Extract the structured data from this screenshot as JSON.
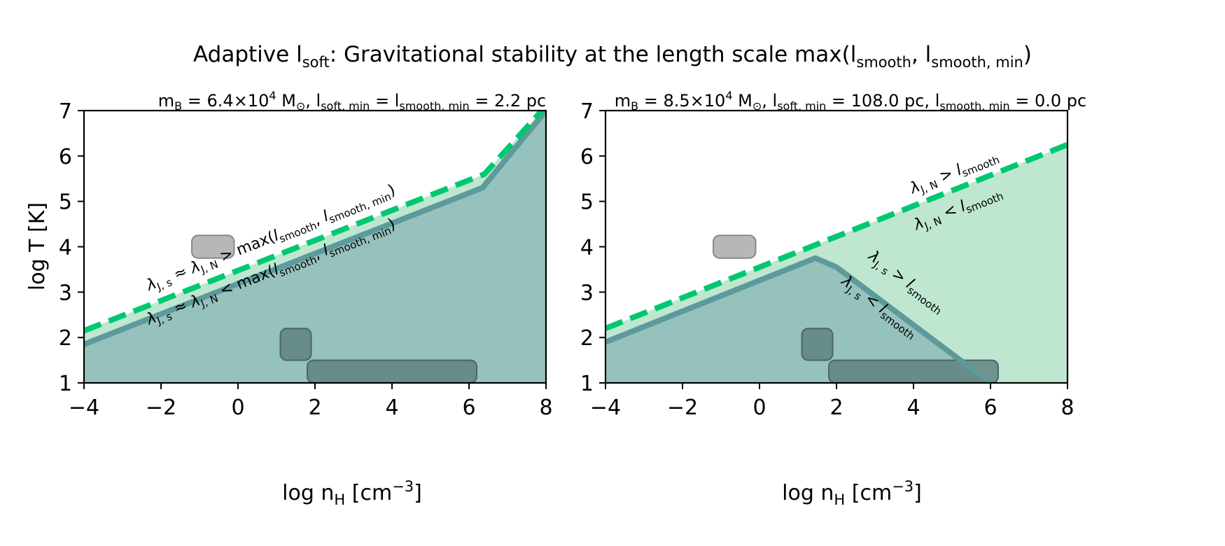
{
  "colors": {
    "green_region": "#bfe6d0",
    "teal_region": "#96c2be",
    "teal_line": "#5e9a9c",
    "dashed_green": "#00c870",
    "light_box": "#aaaaaa",
    "dark_box": "#5d7e7b"
  },
  "chart_data": [
    {
      "type": "area",
      "title": "Adaptive l_soft: Gravitational stability at the length scale max(l_smooth, l_smooth,min)",
      "title_parts": {
        "t1": "Adaptive l",
        "t2": "soft",
        "t3": ": Gravitational stability at the length scale max(l",
        "t4": "smooth",
        "t5": ", l",
        "t6": "smooth, min",
        "t7": ")"
      },
      "subtitle": "m_B = 6.4×10^4 M_⊙, l_soft,min = l_smooth,min = 2.2 pc",
      "subtitle_parts": {
        "s1": "m",
        "s2": "B",
        "s3": " = 6.4×10",
        "s4": "4",
        "s5": " M",
        "s6": "⊙",
        "s7": ", l",
        "s8": "soft, min",
        "s9": " = l",
        "s10": "smooth, min",
        "s11": " = 2.2 pc"
      },
      "xlabel": "log n_H [cm^-3]",
      "xlabel_parts": {
        "a": "log n",
        "b": "H",
        "c": " [cm",
        "d": "−3",
        "e": "]"
      },
      "ylabel": "log T [K]",
      "xlim": [
        -4,
        8
      ],
      "ylim": [
        1,
        7
      ],
      "xticks": [
        "−4",
        "−2",
        "0",
        "2",
        "4",
        "6",
        "8"
      ],
      "xtick_values": [
        -4,
        -2,
        0,
        2,
        4,
        6,
        8
      ],
      "yticks": [
        "1",
        "2",
        "3",
        "4",
        "5",
        "6",
        "7"
      ],
      "ytick_values": [
        1,
        2,
        3,
        4,
        5,
        6,
        7
      ],
      "series": [
        {
          "name": "dashed green",
          "x": [
            -4,
            6.4,
            8
          ],
          "y": [
            2.15,
            5.6,
            7.1
          ]
        },
        {
          "name": "teal boundary",
          "x": [
            -4,
            6.35,
            8
          ],
          "y": [
            1.85,
            5.3,
            7.0
          ]
        }
      ],
      "boxes": [
        {
          "shade": "light",
          "x": [
            -1.2,
            -0.1
          ],
          "y": [
            3.75,
            4.25
          ]
        },
        {
          "shade": "dark",
          "x": [
            1.1,
            1.9
          ],
          "y": [
            1.5,
            2.2
          ]
        },
        {
          "shade": "dark",
          "x": [
            1.8,
            6.2
          ],
          "y": [
            1.0,
            1.5
          ]
        }
      ],
      "annotations": [
        {
          "id": "a1",
          "text": "λJ,s ≈ λJ,N > max(lsmooth, lsmooth,min)",
          "x": 0.9,
          "y": 4.1,
          "parts": [
            "λ",
            "J, s",
            " ≈ λ",
            "J, N",
            " > max(",
            "l",
            "smooth",
            ", ",
            "l",
            "smooth, min",
            ")"
          ]
        },
        {
          "id": "a2",
          "text": "λJ,s ≈ λJ,N < max(lsmooth, lsmooth,min)",
          "x": 0.9,
          "y": 3.35,
          "parts": [
            "λ",
            "J, s",
            " ≈ λ",
            "J, N",
            " < max(",
            "l",
            "smooth",
            ", ",
            "l",
            "smooth, min",
            ")"
          ]
        }
      ]
    },
    {
      "type": "area",
      "subtitle": "m_B = 8.5×10^4 M_⊙, l_soft,min = 108.0 pc, l_smooth,min = 0.0 pc",
      "subtitle_parts": {
        "s1": "m",
        "s2": "B",
        "s3": " = 8.5×10",
        "s4": "4",
        "s5": " M",
        "s6": "⊙",
        "s7": ", l",
        "s8": "soft, min",
        "s9": " = 108.0 pc, l",
        "s10": "smooth, min",
        "s11": " = 0.0 pc"
      },
      "xlabel": "log n_H [cm^-3]",
      "xlabel_parts": {
        "a": "log n",
        "b": "H",
        "c": " [cm",
        "d": "−3",
        "e": "]"
      },
      "xlim": [
        -4,
        8
      ],
      "ylim": [
        1,
        7
      ],
      "xticks": [
        "−4",
        "−2",
        "0",
        "2",
        "4",
        "6",
        "8"
      ],
      "xtick_values": [
        -4,
        -2,
        0,
        2,
        4,
        6,
        8
      ],
      "yticks": [
        "1",
        "2",
        "3",
        "4",
        "5",
        "6",
        "7"
      ],
      "ytick_values": [
        1,
        2,
        3,
        4,
        5,
        6,
        7
      ],
      "series": [
        {
          "name": "dashed green",
          "x": [
            -4,
            8
          ],
          "y": [
            2.2,
            6.25
          ]
        },
        {
          "name": "teal boundary",
          "x": [
            -4,
            1.45,
            2.0,
            6.0
          ],
          "y": [
            1.9,
            3.75,
            3.55,
            1.0
          ]
        }
      ],
      "boxes": [
        {
          "shade": "light",
          "x": [
            -1.2,
            -0.1
          ],
          "y": [
            3.75,
            4.25
          ]
        },
        {
          "shade": "dark",
          "x": [
            1.1,
            1.9
          ],
          "y": [
            1.5,
            2.2
          ]
        },
        {
          "shade": "dark",
          "x": [
            1.8,
            6.2
          ],
          "y": [
            1.0,
            1.5
          ]
        }
      ],
      "annotations": [
        {
          "id": "b1",
          "text": "λJ,N > lsmooth",
          "x": 5.1,
          "y": 5.55,
          "parts": [
            "λ",
            "J, N",
            " > ",
            "l",
            "smooth"
          ]
        },
        {
          "id": "b2",
          "text": "λJ,N < lsmooth",
          "x": 5.2,
          "y": 4.75,
          "parts": [
            "λ",
            "J, N",
            " < ",
            "l",
            "smooth"
          ]
        },
        {
          "id": "b3",
          "text": "λJ,s > lsmooth",
          "x": 3.75,
          "y": 3.15,
          "parts": [
            "λ",
            "J, s",
            " > ",
            "l",
            "smooth"
          ]
        },
        {
          "id": "b4",
          "text": "λJ,s < lsmooth",
          "x": 3.05,
          "y": 2.6,
          "parts": [
            "λ",
            "J, s",
            " < ",
            "l",
            "smooth"
          ]
        }
      ]
    }
  ]
}
